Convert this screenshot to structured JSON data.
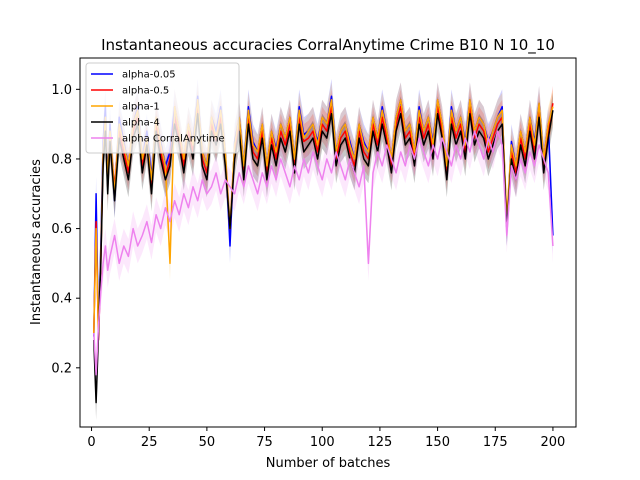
{
  "chart_data": {
    "type": "line",
    "title": "Instantaneous accuracies CorralAnytime Crime B10 N 10_10",
    "xlabel": "Number of batches",
    "ylabel": "Instantaneous accuracies",
    "xlim": [
      -5,
      210
    ],
    "ylim": [
      0.03,
      1.09
    ],
    "xticks": [
      0,
      25,
      50,
      75,
      100,
      125,
      150,
      175,
      200
    ],
    "yticks": [
      0.2,
      0.4,
      0.6,
      0.8,
      1.0
    ],
    "ytick_labels": [
      "0.2",
      "0.4",
      "0.6",
      "0.8",
      "1.0"
    ],
    "legend_position": "upper-left",
    "grid": false,
    "band_halfwidth": 0.05,
    "series": [
      {
        "name": "alpha-0.05",
        "color": "#0000ff",
        "x": [
          1,
          2,
          3,
          4,
          5,
          6,
          7,
          8,
          10,
          12,
          14,
          16,
          18,
          20,
          22,
          24,
          26,
          28,
          30,
          32,
          34,
          36,
          38,
          40,
          42,
          44,
          46,
          48,
          50,
          52,
          54,
          56,
          58,
          60,
          62,
          64,
          66,
          68,
          70,
          72,
          74,
          76,
          78,
          80,
          82,
          84,
          86,
          88,
          90,
          92,
          94,
          96,
          98,
          100,
          102,
          104,
          106,
          108,
          110,
          112,
          114,
          116,
          118,
          120,
          122,
          124,
          126,
          128,
          130,
          132,
          134,
          136,
          138,
          140,
          142,
          144,
          146,
          148,
          150,
          152,
          154,
          156,
          158,
          160,
          162,
          164,
          166,
          168,
          170,
          172,
          174,
          176,
          178,
          180,
          182,
          184,
          186,
          188,
          190,
          192,
          194,
          196,
          198,
          200
        ],
        "y": [
          0.29,
          0.7,
          0.3,
          0.55,
          0.85,
          0.95,
          0.75,
          0.9,
          0.68,
          0.92,
          0.85,
          0.78,
          0.9,
          0.95,
          0.8,
          0.88,
          0.75,
          0.92,
          0.85,
          0.78,
          0.82,
          0.95,
          0.88,
          0.8,
          0.9,
          0.85,
          0.98,
          0.82,
          0.78,
          0.92,
          0.88,
          0.95,
          0.82,
          0.55,
          0.85,
          0.92,
          0.78,
          0.95,
          0.85,
          0.82,
          0.9,
          0.78,
          0.88,
          0.83,
          0.9,
          0.86,
          0.92,
          0.8,
          0.95,
          0.87,
          0.88,
          0.9,
          0.85,
          0.92,
          0.9,
          0.98,
          0.82,
          0.88,
          0.9,
          0.85,
          0.8,
          0.9,
          0.85,
          0.82,
          0.92,
          0.86,
          0.95,
          0.88,
          0.8,
          0.92,
          0.97,
          0.88,
          0.9,
          0.82,
          0.95,
          0.88,
          0.92,
          0.85,
          0.97,
          0.9,
          0.78,
          0.95,
          0.88,
          0.92,
          0.85,
          0.97,
          0.88,
          0.92,
          0.9,
          0.85,
          0.88,
          0.92,
          0.95,
          0.6,
          0.85,
          0.78,
          0.88,
          0.82,
          0.92,
          0.85,
          0.96,
          0.8,
          0.9,
          0.58
        ]
      },
      {
        "name": "alpha-0.5",
        "color": "#ff0000",
        "x": [
          1,
          2,
          3,
          4,
          5,
          6,
          7,
          8,
          10,
          12,
          14,
          16,
          18,
          20,
          22,
          24,
          26,
          28,
          30,
          32,
          34,
          36,
          38,
          40,
          42,
          44,
          46,
          48,
          50,
          52,
          54,
          56,
          58,
          60,
          62,
          64,
          66,
          68,
          70,
          72,
          74,
          76,
          78,
          80,
          82,
          84,
          86,
          88,
          90,
          92,
          94,
          96,
          98,
          100,
          102,
          104,
          106,
          108,
          110,
          112,
          114,
          116,
          118,
          120,
          122,
          124,
          126,
          128,
          130,
          132,
          134,
          136,
          138,
          140,
          142,
          144,
          146,
          148,
          150,
          152,
          154,
          156,
          158,
          160,
          162,
          164,
          166,
          168,
          170,
          172,
          174,
          176,
          178,
          180,
          182,
          184,
          186,
          188,
          190,
          192,
          194,
          196,
          198,
          200
        ],
        "y": [
          0.3,
          0.62,
          0.28,
          0.5,
          0.8,
          0.9,
          0.72,
          0.85,
          0.72,
          0.88,
          0.82,
          0.76,
          0.88,
          0.92,
          0.78,
          0.85,
          0.72,
          0.9,
          0.82,
          0.75,
          0.8,
          0.92,
          0.86,
          0.78,
          0.88,
          0.82,
          0.95,
          0.8,
          0.76,
          0.9,
          0.85,
          0.92,
          0.8,
          0.6,
          0.82,
          0.9,
          0.76,
          0.92,
          0.82,
          0.8,
          0.88,
          0.76,
          0.86,
          0.8,
          0.88,
          0.84,
          0.9,
          0.78,
          0.92,
          0.85,
          0.86,
          0.88,
          0.82,
          0.9,
          0.88,
          0.95,
          0.8,
          0.86,
          0.88,
          0.82,
          0.78,
          0.88,
          0.82,
          0.8,
          0.9,
          0.84,
          0.92,
          0.86,
          0.78,
          0.9,
          0.95,
          0.86,
          0.88,
          0.8,
          0.92,
          0.86,
          0.9,
          0.82,
          0.95,
          0.88,
          0.76,
          0.92,
          0.86,
          0.9,
          0.82,
          0.95,
          0.86,
          0.9,
          0.88,
          0.82,
          0.86,
          0.9,
          0.92,
          0.62,
          0.82,
          0.76,
          0.86,
          0.8,
          0.9,
          0.82,
          0.94,
          0.78,
          0.88,
          0.96
        ]
      },
      {
        "name": "alpha-1",
        "color": "#ffa500",
        "x": [
          1,
          2,
          3,
          4,
          5,
          6,
          7,
          8,
          10,
          12,
          14,
          16,
          18,
          20,
          22,
          24,
          26,
          28,
          30,
          32,
          34,
          36,
          38,
          40,
          42,
          44,
          46,
          48,
          50,
          52,
          54,
          56,
          58,
          60,
          62,
          64,
          66,
          68,
          70,
          72,
          74,
          76,
          78,
          80,
          82,
          84,
          86,
          88,
          90,
          92,
          94,
          96,
          98,
          100,
          102,
          104,
          106,
          108,
          110,
          112,
          114,
          116,
          118,
          120,
          122,
          124,
          126,
          128,
          130,
          132,
          134,
          136,
          138,
          140,
          142,
          144,
          146,
          148,
          150,
          152,
          154,
          156,
          158,
          160,
          162,
          164,
          166,
          168,
          170,
          172,
          174,
          176,
          178,
          180,
          182,
          184,
          186,
          188,
          190,
          192,
          194,
          196,
          198,
          200
        ],
        "y": [
          0.3,
          0.6,
          0.3,
          0.52,
          0.82,
          0.92,
          0.74,
          0.88,
          0.7,
          0.9,
          0.84,
          0.78,
          0.9,
          0.94,
          0.8,
          0.86,
          0.74,
          0.92,
          0.84,
          0.78,
          0.5,
          0.95,
          0.88,
          0.8,
          0.9,
          0.84,
          0.97,
          0.82,
          0.78,
          0.92,
          0.86,
          0.94,
          0.82,
          0.6,
          0.84,
          0.92,
          0.78,
          0.94,
          0.84,
          0.82,
          0.9,
          0.78,
          0.88,
          0.82,
          0.9,
          0.86,
          0.92,
          0.8,
          0.94,
          0.86,
          0.88,
          0.9,
          0.84,
          0.92,
          0.9,
          0.97,
          0.82,
          0.88,
          0.9,
          0.84,
          0.8,
          0.9,
          0.84,
          0.82,
          0.92,
          0.86,
          0.94,
          0.88,
          0.8,
          0.92,
          0.97,
          0.88,
          0.9,
          0.82,
          0.94,
          0.88,
          0.92,
          0.84,
          0.97,
          0.9,
          0.78,
          0.94,
          0.88,
          0.92,
          0.84,
          0.97,
          0.88,
          0.92,
          0.9,
          0.84,
          0.88,
          0.92,
          0.94,
          0.63,
          0.84,
          0.78,
          0.88,
          0.82,
          0.92,
          0.84,
          0.96,
          0.8,
          0.9,
          0.95
        ]
      },
      {
        "name": "alpha-4",
        "color": "#000000",
        "x": [
          1,
          2,
          3,
          4,
          5,
          6,
          7,
          8,
          10,
          12,
          14,
          16,
          18,
          20,
          22,
          24,
          26,
          28,
          30,
          32,
          34,
          36,
          38,
          40,
          42,
          44,
          46,
          48,
          50,
          52,
          54,
          56,
          58,
          60,
          62,
          64,
          66,
          68,
          70,
          72,
          74,
          76,
          78,
          80,
          82,
          84,
          86,
          88,
          90,
          92,
          94,
          96,
          98,
          100,
          102,
          104,
          106,
          108,
          110,
          112,
          114,
          116,
          118,
          120,
          122,
          124,
          126,
          128,
          130,
          132,
          134,
          136,
          138,
          140,
          142,
          144,
          146,
          148,
          150,
          152,
          154,
          156,
          158,
          160,
          162,
          164,
          166,
          168,
          170,
          172,
          174,
          176,
          178,
          180,
          182,
          184,
          186,
          188,
          190,
          192,
          194,
          196,
          198,
          200
        ],
        "y": [
          0.28,
          0.1,
          0.3,
          0.5,
          0.78,
          0.88,
          0.7,
          0.85,
          0.68,
          0.86,
          0.8,
          0.74,
          0.86,
          0.9,
          0.76,
          0.84,
          0.7,
          0.88,
          0.8,
          0.74,
          0.78,
          0.9,
          0.84,
          0.76,
          0.86,
          0.8,
          0.93,
          0.78,
          0.74,
          0.88,
          0.84,
          0.9,
          0.78,
          0.6,
          0.8,
          0.88,
          0.74,
          0.9,
          0.8,
          0.78,
          0.86,
          0.74,
          0.84,
          0.78,
          0.86,
          0.82,
          0.88,
          0.76,
          0.9,
          0.82,
          0.84,
          0.86,
          0.8,
          0.88,
          0.86,
          0.93,
          0.78,
          0.84,
          0.86,
          0.8,
          0.76,
          0.86,
          0.8,
          0.78,
          0.88,
          0.82,
          0.9,
          0.84,
          0.76,
          0.88,
          0.93,
          0.84,
          0.86,
          0.78,
          0.9,
          0.84,
          0.88,
          0.8,
          0.93,
          0.86,
          0.74,
          0.9,
          0.84,
          0.88,
          0.8,
          0.93,
          0.84,
          0.88,
          0.86,
          0.8,
          0.84,
          0.88,
          0.9,
          0.6,
          0.8,
          0.74,
          0.84,
          0.78,
          0.88,
          0.8,
          0.92,
          0.76,
          0.86,
          0.94
        ]
      },
      {
        "name": "alpha CorralAnytime",
        "color": "#ee82ee",
        "x": [
          1,
          2,
          3,
          4,
          5,
          6,
          7,
          8,
          10,
          12,
          14,
          16,
          18,
          20,
          22,
          24,
          26,
          28,
          30,
          32,
          34,
          36,
          38,
          40,
          42,
          44,
          46,
          48,
          50,
          52,
          54,
          56,
          58,
          60,
          62,
          64,
          66,
          68,
          70,
          72,
          74,
          76,
          78,
          80,
          82,
          84,
          86,
          88,
          90,
          92,
          94,
          96,
          98,
          100,
          102,
          104,
          106,
          108,
          110,
          112,
          114,
          116,
          118,
          120,
          122,
          124,
          126,
          128,
          130,
          132,
          134,
          136,
          138,
          140,
          142,
          144,
          146,
          148,
          150,
          152,
          154,
          156,
          158,
          160,
          162,
          164,
          166,
          168,
          170,
          172,
          174,
          176,
          178,
          180,
          182,
          184,
          186,
          188,
          190,
          192,
          194,
          196,
          198,
          200
        ],
        "y": [
          0.3,
          0.18,
          0.32,
          0.42,
          0.5,
          0.55,
          0.48,
          0.52,
          0.58,
          0.5,
          0.55,
          0.52,
          0.6,
          0.55,
          0.58,
          0.62,
          0.56,
          0.64,
          0.6,
          0.66,
          0.62,
          0.68,
          0.64,
          0.7,
          0.66,
          0.72,
          0.68,
          0.74,
          0.7,
          0.72,
          0.76,
          0.7,
          0.74,
          0.72,
          0.7,
          0.76,
          0.72,
          0.78,
          0.74,
          0.7,
          0.76,
          0.72,
          0.78,
          0.74,
          0.8,
          0.76,
          0.72,
          0.78,
          0.74,
          0.8,
          0.76,
          0.82,
          0.78,
          0.74,
          0.8,
          0.76,
          0.82,
          0.78,
          0.74,
          0.8,
          0.76,
          0.72,
          0.78,
          0.5,
          0.76,
          0.82,
          0.78,
          0.84,
          0.8,
          0.76,
          0.82,
          0.78,
          0.84,
          0.8,
          0.86,
          0.82,
          0.78,
          0.84,
          0.8,
          0.86,
          0.82,
          0.78,
          0.84,
          0.8,
          0.86,
          0.82,
          0.88,
          0.84,
          0.8,
          0.86,
          0.82,
          0.88,
          0.84,
          0.58,
          0.78,
          0.74,
          0.8,
          0.76,
          0.82,
          0.78,
          0.84,
          0.8,
          0.76,
          0.55
        ]
      }
    ]
  }
}
